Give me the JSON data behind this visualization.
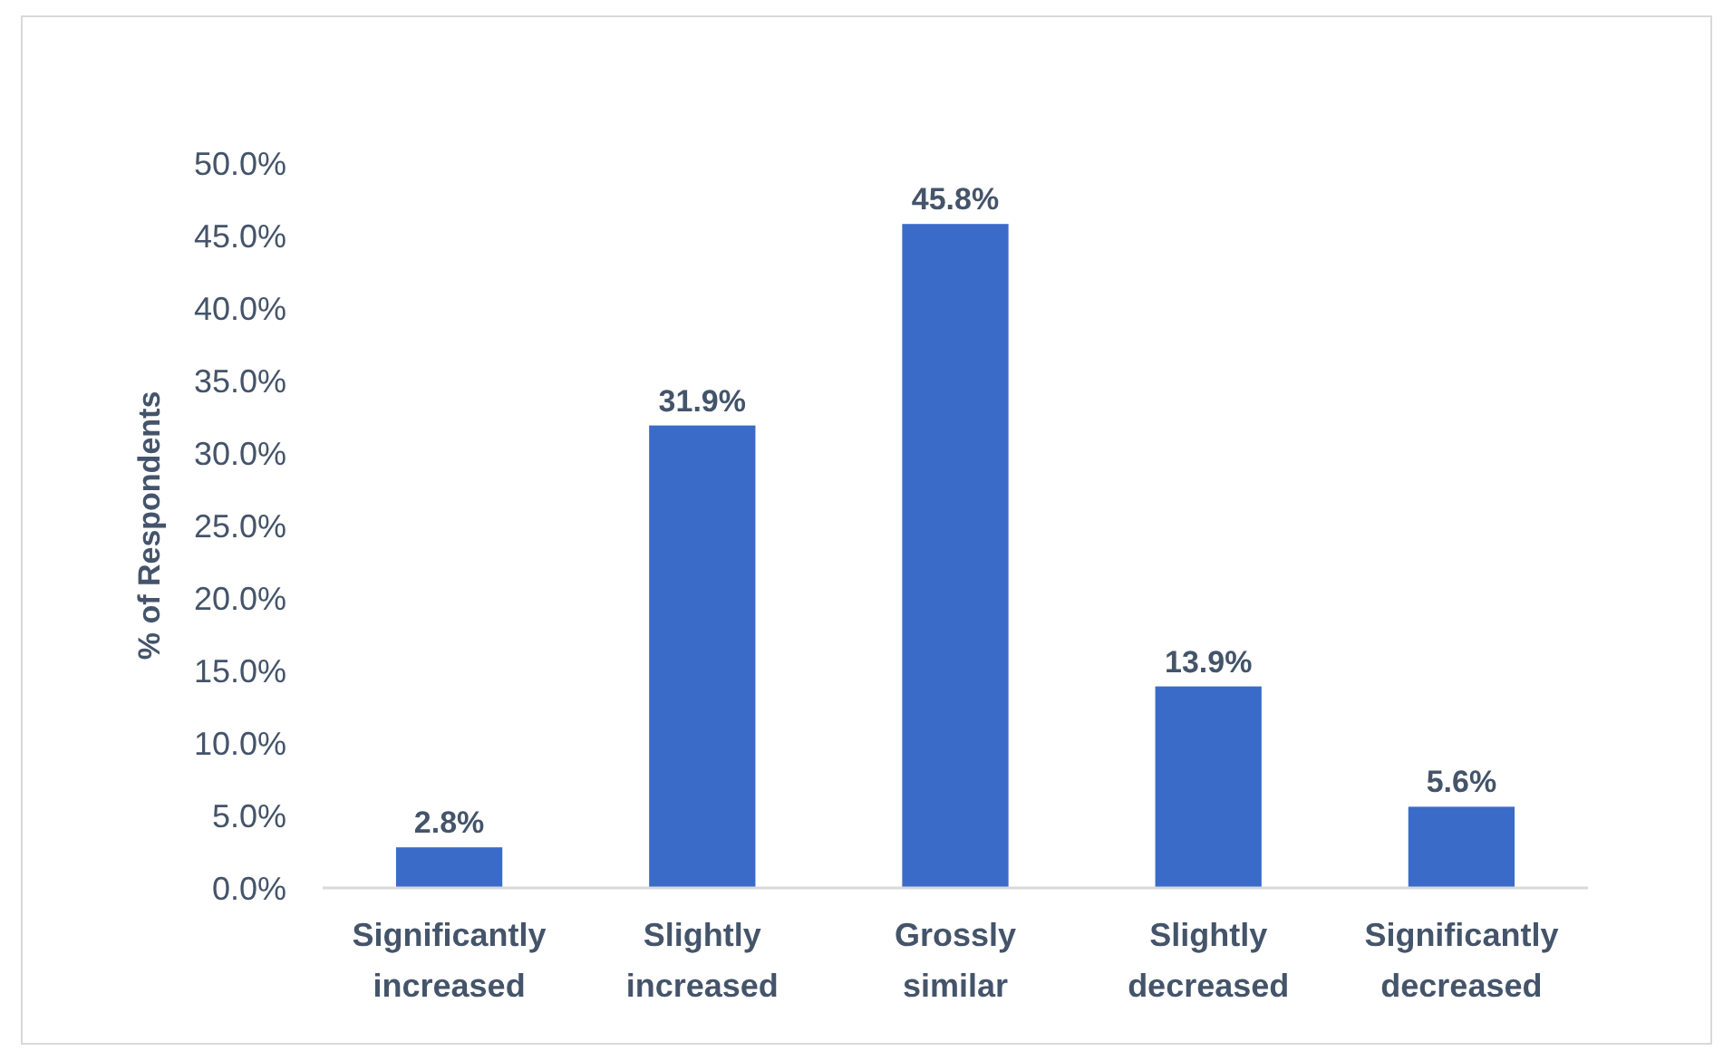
{
  "chart_data": {
    "type": "bar",
    "ylabel": "% of Respondents",
    "categories": [
      "Significantly increased",
      "Slightly increased",
      "Grossly similar",
      "Slightly decreased",
      "Significantly decreased"
    ],
    "values": [
      2.8,
      31.9,
      45.8,
      13.9,
      5.6
    ],
    "value_labels": [
      "2.8%",
      "31.9%",
      "45.8%",
      "13.9%",
      "5.6%"
    ],
    "color": "#3a6bc8",
    "ylim": [
      0,
      50
    ],
    "yticks": [
      {
        "value": 0,
        "label": "0.0%"
      },
      {
        "value": 5,
        "label": "5.0%"
      },
      {
        "value": 10,
        "label": "10.0%"
      },
      {
        "value": 15,
        "label": "15.0%"
      },
      {
        "value": 20,
        "label": "20.0%"
      },
      {
        "value": 25,
        "label": "25.0%"
      },
      {
        "value": 30,
        "label": "30.0%"
      },
      {
        "value": 35,
        "label": "35.0%"
      },
      {
        "value": 40,
        "label": "40.0%"
      },
      {
        "value": 45,
        "label": "45.0%"
      },
      {
        "value": 50,
        "label": "50.0%"
      }
    ],
    "grid": false
  }
}
